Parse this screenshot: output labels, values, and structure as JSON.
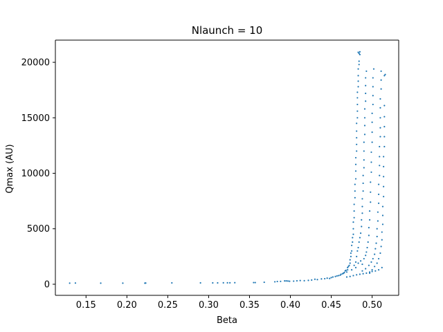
{
  "chart_data": {
    "type": "scatter",
    "title": "Nlaunch = 10",
    "xlabel": "Beta",
    "ylabel": "Qmax (AU)",
    "xlim": [
      0.1125,
      0.5325
    ],
    "ylim": [
      -1000,
      22000
    ],
    "xticks": [
      0.15,
      0.2,
      0.25,
      0.3,
      0.35,
      0.4,
      0.45,
      0.5
    ],
    "xtick_labels": [
      "0.15",
      "0.20",
      "0.25",
      "0.30",
      "0.35",
      "0.40",
      "0.45",
      "0.50"
    ],
    "yticks": [
      0,
      5000,
      10000,
      15000,
      20000
    ],
    "ytick_labels": [
      "0",
      "5000",
      "10000",
      "15000",
      "20000"
    ],
    "grid": false,
    "legend": "none",
    "colors": {
      "points": "#1f77b4",
      "axes": "#000000",
      "background": "#ffffff"
    },
    "series": [
      {
        "points": [
          [
            0.13,
            100
          ],
          [
            0.137,
            110
          ],
          [
            0.168,
            100
          ],
          [
            0.195,
            100
          ],
          [
            0.222,
            100
          ],
          [
            0.223,
            110
          ],
          [
            0.255,
            120
          ],
          [
            0.29,
            120
          ],
          [
            0.305,
            120
          ],
          [
            0.311,
            120
          ],
          [
            0.318,
            130
          ],
          [
            0.323,
            130
          ],
          [
            0.326,
            130
          ],
          [
            0.332,
            140
          ],
          [
            0.355,
            150
          ],
          [
            0.357,
            150
          ],
          [
            0.368,
            180
          ],
          [
            0.381,
            220
          ],
          [
            0.384,
            250
          ],
          [
            0.388,
            260
          ],
          [
            0.393,
            300
          ],
          [
            0.395,
            300
          ],
          [
            0.397,
            290
          ],
          [
            0.399,
            270
          ],
          [
            0.404,
            280
          ],
          [
            0.408,
            310
          ],
          [
            0.412,
            330
          ],
          [
            0.417,
            320
          ],
          [
            0.422,
            350
          ],
          [
            0.426,
            380
          ],
          [
            0.43,
            450
          ],
          [
            0.433,
            420
          ],
          [
            0.438,
            480
          ],
          [
            0.442,
            500
          ],
          [
            0.445,
            550
          ],
          [
            0.448,
            520
          ],
          [
            0.45,
            600
          ],
          [
            0.452,
            650
          ],
          [
            0.455,
            700
          ],
          [
            0.457,
            750
          ],
          [
            0.459,
            780
          ],
          [
            0.461,
            820
          ],
          [
            0.462,
            900
          ],
          [
            0.464,
            950
          ],
          [
            0.465,
            1000
          ],
          [
            0.466,
            1050
          ],
          [
            0.467,
            1200
          ],
          [
            0.468,
            1250
          ],
          [
            0.469,
            1100
          ],
          [
            0.47,
            1300
          ],
          [
            0.47,
            1500
          ],
          [
            0.471,
            1600
          ],
          [
            0.472,
            1700
          ],
          [
            0.473,
            1900
          ],
          [
            0.473,
            2200
          ],
          [
            0.474,
            2500
          ],
          [
            0.474,
            2800
          ],
          [
            0.475,
            3000
          ],
          [
            0.475,
            3500
          ],
          [
            0.476,
            3800
          ],
          [
            0.476,
            4200
          ],
          [
            0.477,
            4500
          ],
          [
            0.477,
            5000
          ],
          [
            0.477,
            5600
          ],
          [
            0.478,
            6000
          ],
          [
            0.478,
            6600
          ],
          [
            0.478,
            7200
          ],
          [
            0.479,
            7800
          ],
          [
            0.479,
            8400
          ],
          [
            0.479,
            9000
          ],
          [
            0.48,
            9500
          ],
          [
            0.48,
            10200
          ],
          [
            0.48,
            10800
          ],
          [
            0.48,
            11400
          ],
          [
            0.481,
            12000
          ],
          [
            0.481,
            12600
          ],
          [
            0.481,
            13200
          ],
          [
            0.481,
            13800
          ],
          [
            0.481,
            14500
          ],
          [
            0.482,
            15000
          ],
          [
            0.482,
            15600
          ],
          [
            0.482,
            16200
          ],
          [
            0.482,
            16800
          ],
          [
            0.482,
            17300
          ],
          [
            0.483,
            17800
          ],
          [
            0.483,
            18300
          ],
          [
            0.483,
            18800
          ],
          [
            0.483,
            19400
          ],
          [
            0.484,
            19800
          ],
          [
            0.484,
            20100
          ],
          [
            0.483,
            20900
          ],
          [
            0.484,
            20800
          ],
          [
            0.485,
            20950
          ],
          [
            0.485,
            20700
          ],
          [
            0.48,
            2000
          ],
          [
            0.481,
            2500
          ],
          [
            0.482,
            3000
          ],
          [
            0.483,
            3300
          ],
          [
            0.484,
            3800
          ],
          [
            0.485,
            4200
          ],
          [
            0.486,
            4600
          ],
          [
            0.487,
            5200
          ],
          [
            0.487,
            5800
          ],
          [
            0.488,
            6400
          ],
          [
            0.488,
            7000
          ],
          [
            0.488,
            7700
          ],
          [
            0.489,
            8400
          ],
          [
            0.489,
            9100
          ],
          [
            0.489,
            9800
          ],
          [
            0.49,
            10500
          ],
          [
            0.49,
            11200
          ],
          [
            0.49,
            12000
          ],
          [
            0.49,
            12800
          ],
          [
            0.491,
            13500
          ],
          [
            0.491,
            14300
          ],
          [
            0.491,
            15000
          ],
          [
            0.491,
            15800
          ],
          [
            0.492,
            16500
          ],
          [
            0.492,
            17200
          ],
          [
            0.492,
            17900
          ],
          [
            0.492,
            18600
          ],
          [
            0.493,
            19200
          ],
          [
            0.475,
            1300
          ],
          [
            0.478,
            1700
          ],
          [
            0.48,
            1500
          ],
          [
            0.483,
            1900
          ],
          [
            0.486,
            2100
          ],
          [
            0.488,
            1800
          ],
          [
            0.49,
            2300
          ],
          [
            0.492,
            2600
          ],
          [
            0.493,
            2900
          ],
          [
            0.494,
            3300
          ],
          [
            0.495,
            3800
          ],
          [
            0.496,
            4400
          ],
          [
            0.496,
            5100
          ],
          [
            0.497,
            5800
          ],
          [
            0.497,
            6600
          ],
          [
            0.498,
            7400
          ],
          [
            0.498,
            8300
          ],
          [
            0.498,
            9200
          ],
          [
            0.499,
            10100
          ],
          [
            0.499,
            11000
          ],
          [
            0.499,
            11900
          ],
          [
            0.5,
            12800
          ],
          [
            0.5,
            13700
          ],
          [
            0.5,
            14600
          ],
          [
            0.5,
            15400
          ],
          [
            0.501,
            16200
          ],
          [
            0.501,
            17000
          ],
          [
            0.501,
            17800
          ],
          [
            0.501,
            18600
          ],
          [
            0.502,
            19400
          ],
          [
            0.488,
            1200
          ],
          [
            0.492,
            1400
          ],
          [
            0.496,
            1700
          ],
          [
            0.499,
            2000
          ],
          [
            0.501,
            2300
          ],
          [
            0.503,
            2700
          ],
          [
            0.504,
            3200
          ],
          [
            0.505,
            3700
          ],
          [
            0.506,
            4300
          ],
          [
            0.506,
            5000
          ],
          [
            0.507,
            5700
          ],
          [
            0.507,
            6500
          ],
          [
            0.508,
            7300
          ],
          [
            0.508,
            8100
          ],
          [
            0.508,
            9000
          ],
          [
            0.509,
            9800
          ],
          [
            0.509,
            10700
          ],
          [
            0.509,
            11500
          ],
          [
            0.509,
            12400
          ],
          [
            0.51,
            13300
          ],
          [
            0.51,
            14100
          ],
          [
            0.51,
            15000
          ],
          [
            0.51,
            15900
          ],
          [
            0.51,
            16700
          ],
          [
            0.511,
            17600
          ],
          [
            0.511,
            18400
          ],
          [
            0.511,
            19200
          ],
          [
            0.497,
            1000
          ],
          [
            0.5,
            1300
          ],
          [
            0.503,
            1600
          ],
          [
            0.506,
            1900
          ],
          [
            0.508,
            2300
          ],
          [
            0.51,
            2800
          ],
          [
            0.511,
            3400
          ],
          [
            0.512,
            4000
          ],
          [
            0.512,
            4700
          ],
          [
            0.513,
            5400
          ],
          [
            0.513,
            6200
          ],
          [
            0.513,
            7000
          ],
          [
            0.514,
            7900
          ],
          [
            0.514,
            8800
          ],
          [
            0.514,
            9700
          ],
          [
            0.514,
            10600
          ],
          [
            0.514,
            11500
          ],
          [
            0.515,
            12400
          ],
          [
            0.515,
            13300
          ],
          [
            0.515,
            14200
          ],
          [
            0.515,
            15100
          ],
          [
            0.515,
            16100
          ],
          [
            0.515,
            18800
          ],
          [
            0.516,
            18900
          ],
          [
            0.469,
            650
          ],
          [
            0.473,
            700
          ],
          [
            0.477,
            780
          ],
          [
            0.481,
            850
          ],
          [
            0.485,
            900
          ],
          [
            0.489,
            950
          ],
          [
            0.493,
            1000
          ],
          [
            0.497,
            1100
          ],
          [
            0.5,
            1150
          ],
          [
            0.504,
            1200
          ],
          [
            0.508,
            1300
          ],
          [
            0.512,
            1500
          ]
        ]
      }
    ]
  }
}
